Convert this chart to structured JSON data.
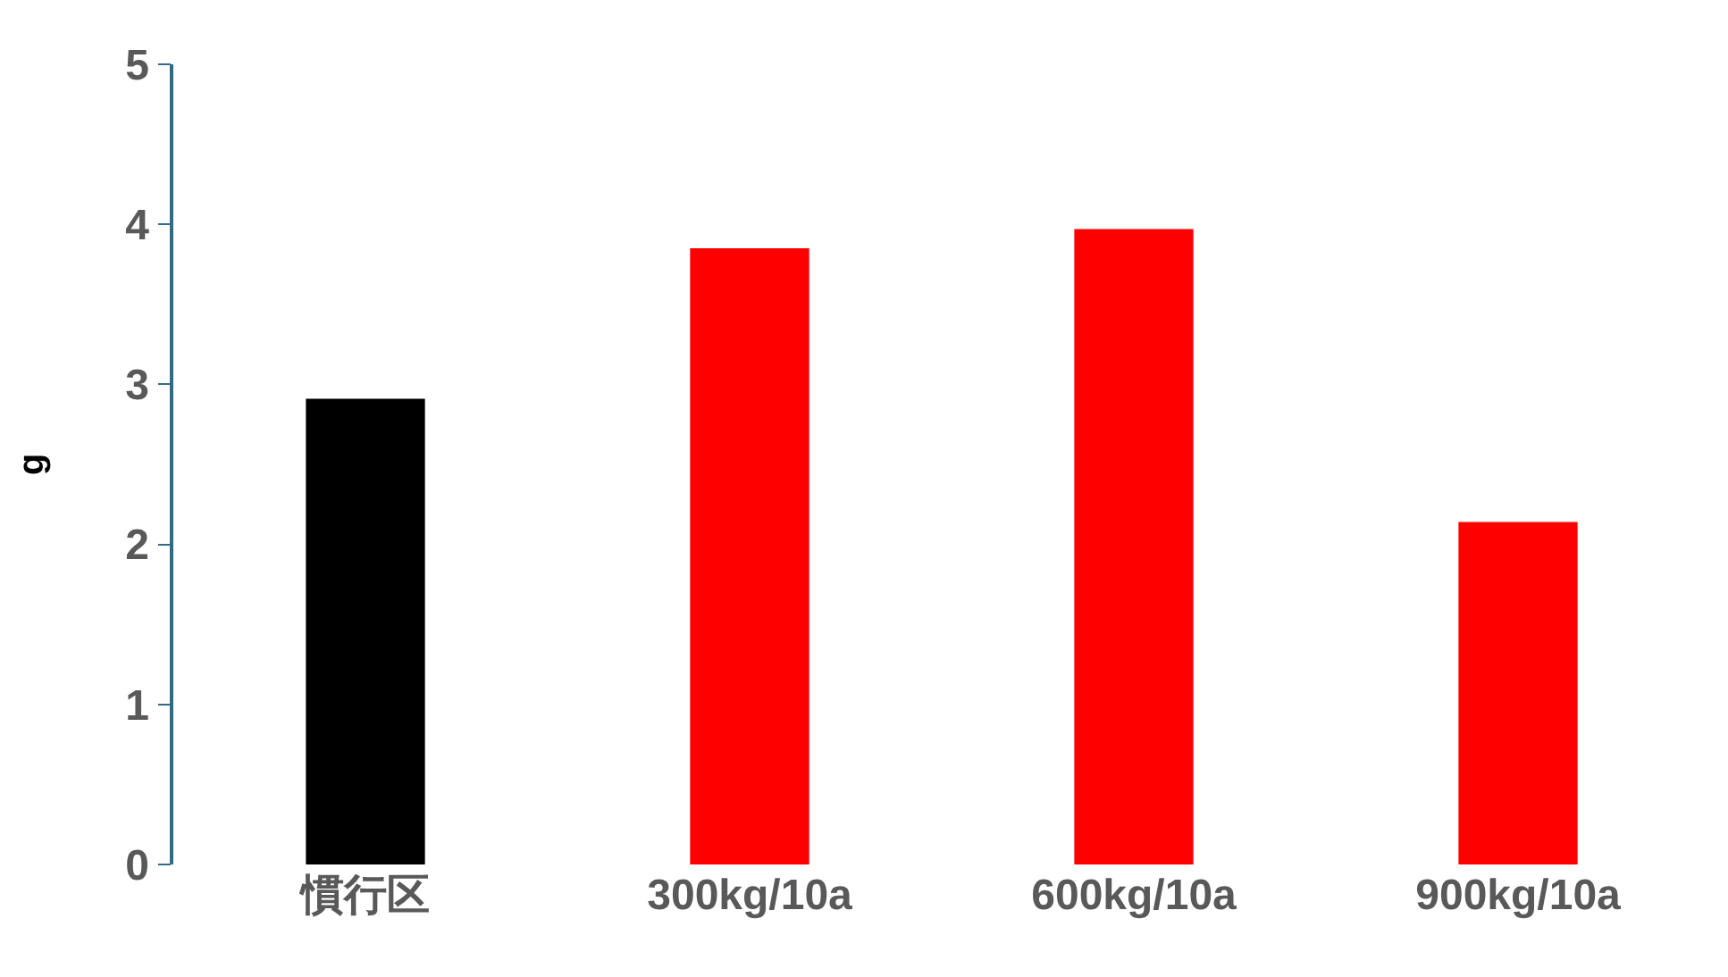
{
  "chart_data": {
    "type": "bar",
    "ylabel": "g",
    "categories": [
      "慣行区",
      "300kg/10a",
      "600kg/10a",
      "900kg/10a"
    ],
    "values": [
      2.91,
      3.85,
      3.97,
      2.14
    ],
    "colors": [
      "#000000",
      "#ff0000",
      "#ff0000",
      "#ff0000"
    ],
    "ylim": [
      0,
      5
    ],
    "yticks": [
      0,
      1,
      2,
      3,
      4,
      5
    ],
    "grid": false
  }
}
